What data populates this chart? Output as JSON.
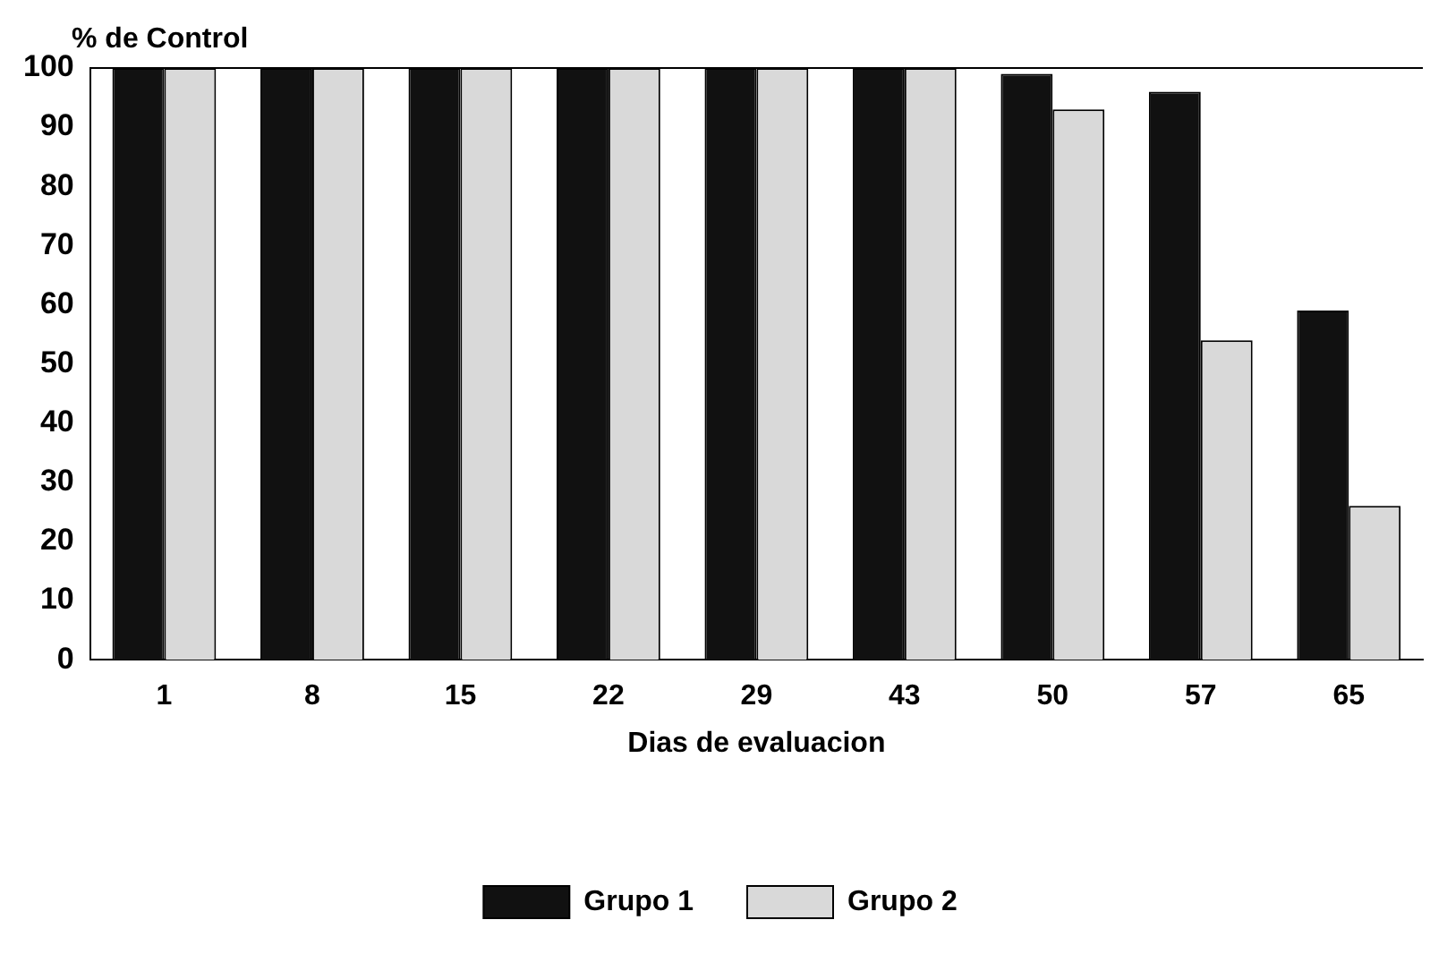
{
  "chart_data": {
    "type": "bar",
    "ylabel": "% de Control",
    "xlabel": "Dias de evaluacion",
    "categories": [
      "1",
      "8",
      "15",
      "22",
      "29",
      "43",
      "50",
      "57",
      "65"
    ],
    "series": [
      {
        "name": "Grupo 1",
        "color": "#111111",
        "values": [
          100,
          100,
          100,
          100,
          100,
          100,
          99,
          96,
          59
        ]
      },
      {
        "name": "Grupo 2",
        "color": "#d9d9d9",
        "values": [
          100,
          100,
          100,
          100,
          100,
          100,
          93,
          54,
          26
        ]
      }
    ],
    "ylim": [
      0,
      100
    ],
    "yticks": [
      0,
      10,
      20,
      30,
      40,
      50,
      60,
      70,
      80,
      90,
      100
    ],
    "grid": false,
    "legend": "bottom"
  }
}
